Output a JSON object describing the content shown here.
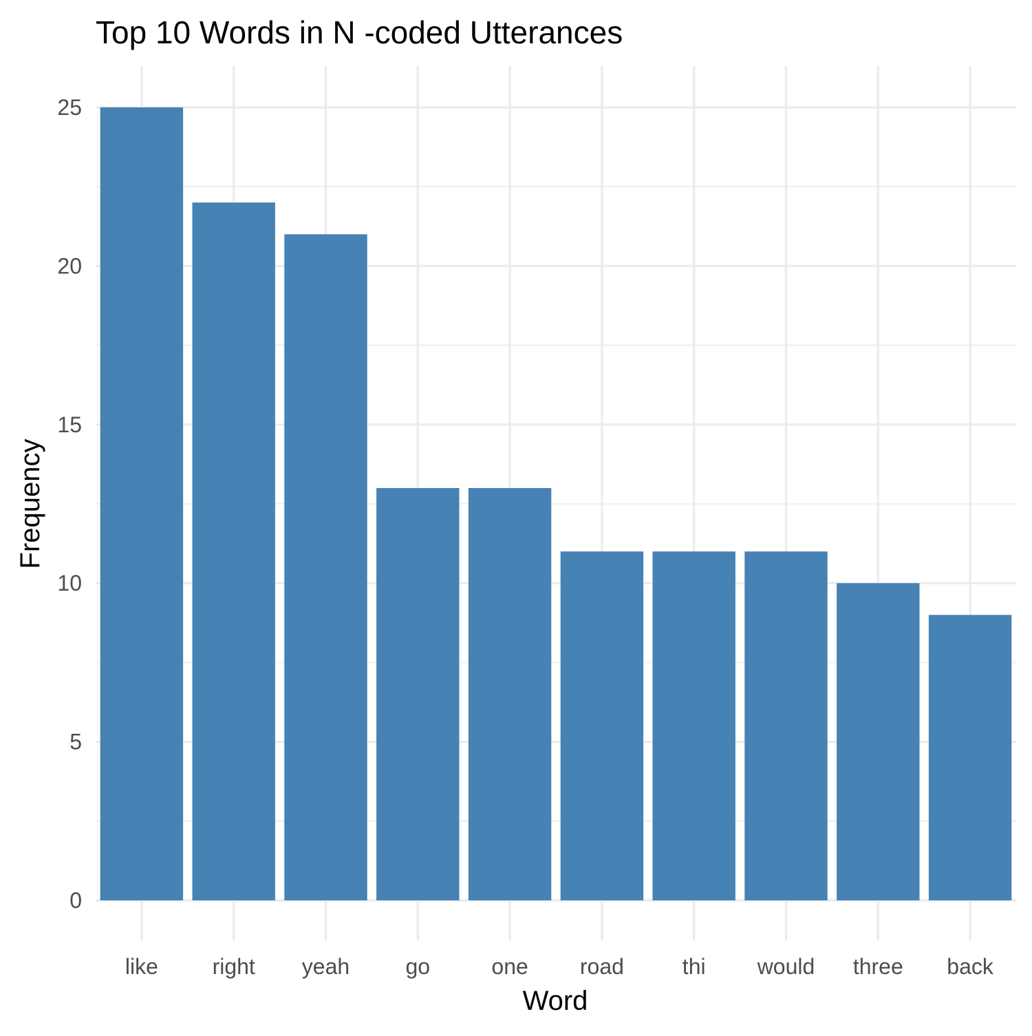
{
  "chart_data": {
    "type": "bar",
    "title": "Top 10 Words in N -coded Utterances",
    "xlabel": "Word",
    "ylabel": "Frequency",
    "categories": [
      "like",
      "right",
      "yeah",
      "go",
      "one",
      "road",
      "thi",
      "would",
      "three",
      "back"
    ],
    "values": [
      25,
      22,
      21,
      13,
      13,
      11,
      11,
      11,
      10,
      9
    ],
    "ylim": [
      0,
      25.5
    ],
    "yticks": [
      0,
      5,
      10,
      15,
      20,
      25
    ],
    "grid": true,
    "legend": "none",
    "bar_color": "#4682B4"
  }
}
